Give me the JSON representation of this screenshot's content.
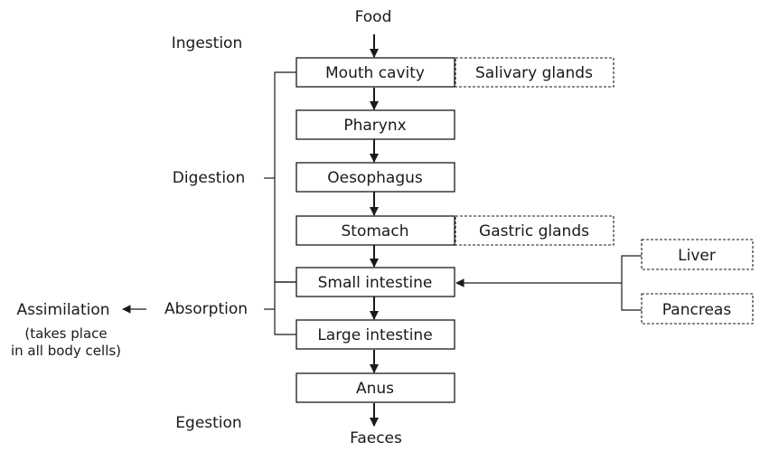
{
  "flow": {
    "food": "Food",
    "mouth": "Mouth cavity",
    "pharynx": "Pharynx",
    "oesophagus": "Oesophagus",
    "stomach": "Stomach",
    "small_intestine": "Small intestine",
    "large_intestine": "Large intestine",
    "anus": "Anus",
    "faeces": "Faeces"
  },
  "glands": {
    "salivary": "Salivary glands",
    "gastric": "Gastric glands",
    "liver": "Liver",
    "pancreas": "Pancreas"
  },
  "stages": {
    "ingestion": "Ingestion",
    "digestion": "Digestion",
    "absorption": "Absorption",
    "egestion": "Egestion",
    "assimilation": "Assimilation",
    "assimilation_note_1": "(takes place",
    "assimilation_note_2": "in all body cells)"
  }
}
